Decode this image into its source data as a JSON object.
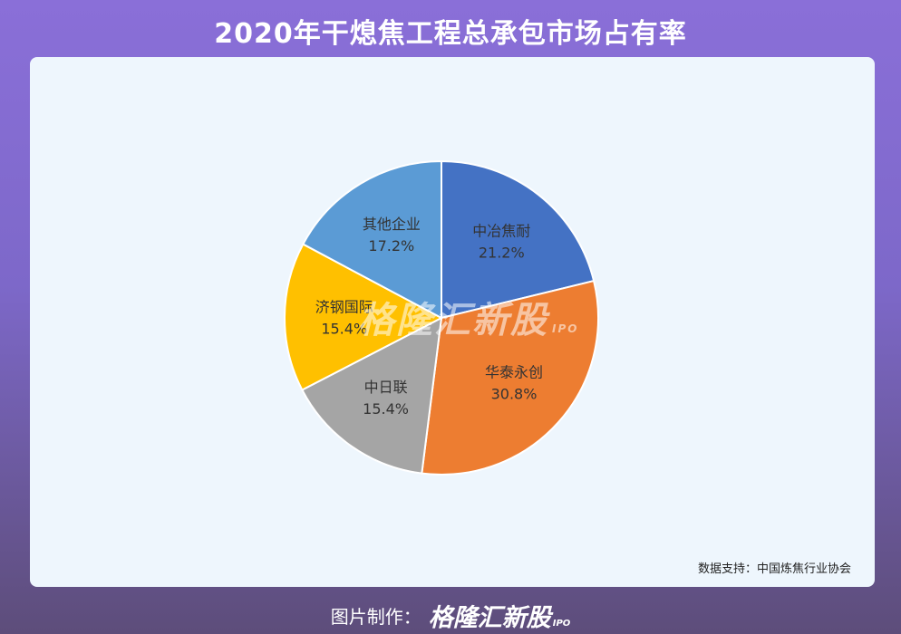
{
  "header": {
    "title": "2020年干熄焦工程总承包市场占有率"
  },
  "chart_data": {
    "type": "pie",
    "title": "2020年干熄焦工程总承包市场占有率",
    "slices": [
      {
        "label": "中冶焦耐",
        "value": 21.2,
        "value_label": "21.2%",
        "color": "#4472c4"
      },
      {
        "label": "华泰永创",
        "value": 30.8,
        "value_label": "30.8%",
        "color": "#ed7d31"
      },
      {
        "label": "中日联",
        "value": 15.4,
        "value_label": "15.4%",
        "color": "#a5a5a5"
      },
      {
        "label": "济钢国际",
        "value": 15.4,
        "value_label": "15.4%",
        "color": "#ffc000"
      },
      {
        "label": "其他企业",
        "value": 17.2,
        "value_label": "17.2%",
        "color": "#5b9bd5"
      }
    ],
    "start_angle_deg": 0,
    "direction": "clockwise"
  },
  "source": "数据支持：中国炼焦行业协会",
  "watermark": {
    "text": "格隆汇新股",
    "sub": "IPO"
  },
  "footer": {
    "label": "图片制作：",
    "brand": "格隆汇新股",
    "brand_sub": "IPO"
  }
}
